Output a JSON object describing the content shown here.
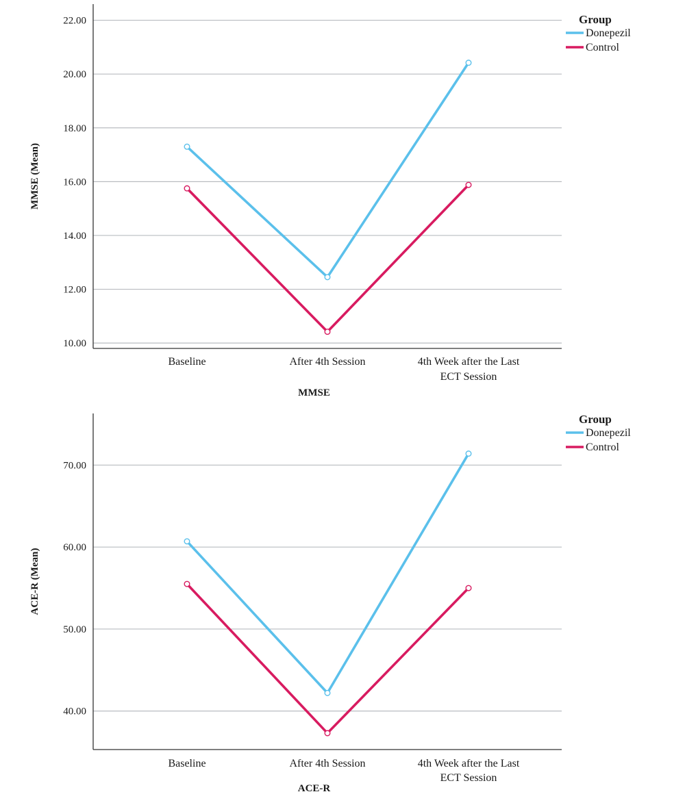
{
  "chart_data": [
    {
      "type": "line",
      "categories": [
        "Baseline",
        "After 4th Session",
        "4th Week after the Last|ECT Session"
      ],
      "xlabel": "MMSE",
      "ylabel": "MMSE (Mean)",
      "ylim": [
        9.8,
        22.6
      ],
      "yticks": [
        10,
        12,
        14,
        16,
        18,
        20,
        22
      ],
      "ytick_labels": [
        "10.00",
        "12.00",
        "14.00",
        "16.00",
        "18.00",
        "20.00",
        "22.00"
      ],
      "grid": true,
      "legend": {
        "title": "Group",
        "position": "top-right"
      },
      "series": [
        {
          "name": "Donepezil",
          "color": "#5bc0eb",
          "values": [
            17.3,
            12.45,
            20.42
          ]
        },
        {
          "name": "Control",
          "color": "#d81b60",
          "values": [
            15.75,
            10.42,
            15.88
          ]
        }
      ]
    },
    {
      "type": "line",
      "categories": [
        "Baseline",
        "After 4th Session",
        "4th Week after the Last|ECT Session"
      ],
      "xlabel": "ACE-R",
      "ylabel": "ACE-R (Mean)",
      "ylim": [
        35.3,
        76.3
      ],
      "yticks": [
        40,
        50,
        60,
        70
      ],
      "ytick_labels": [
        "40.00",
        "50.00",
        "60.00",
        "70.00"
      ],
      "grid": true,
      "legend": {
        "title": "Group",
        "position": "top-right"
      },
      "series": [
        {
          "name": "Donepezil",
          "color": "#5bc0eb",
          "values": [
            60.7,
            42.2,
            71.4
          ]
        },
        {
          "name": "Control",
          "color": "#d81b60",
          "values": [
            55.5,
            37.3,
            55.0
          ]
        }
      ]
    }
  ]
}
